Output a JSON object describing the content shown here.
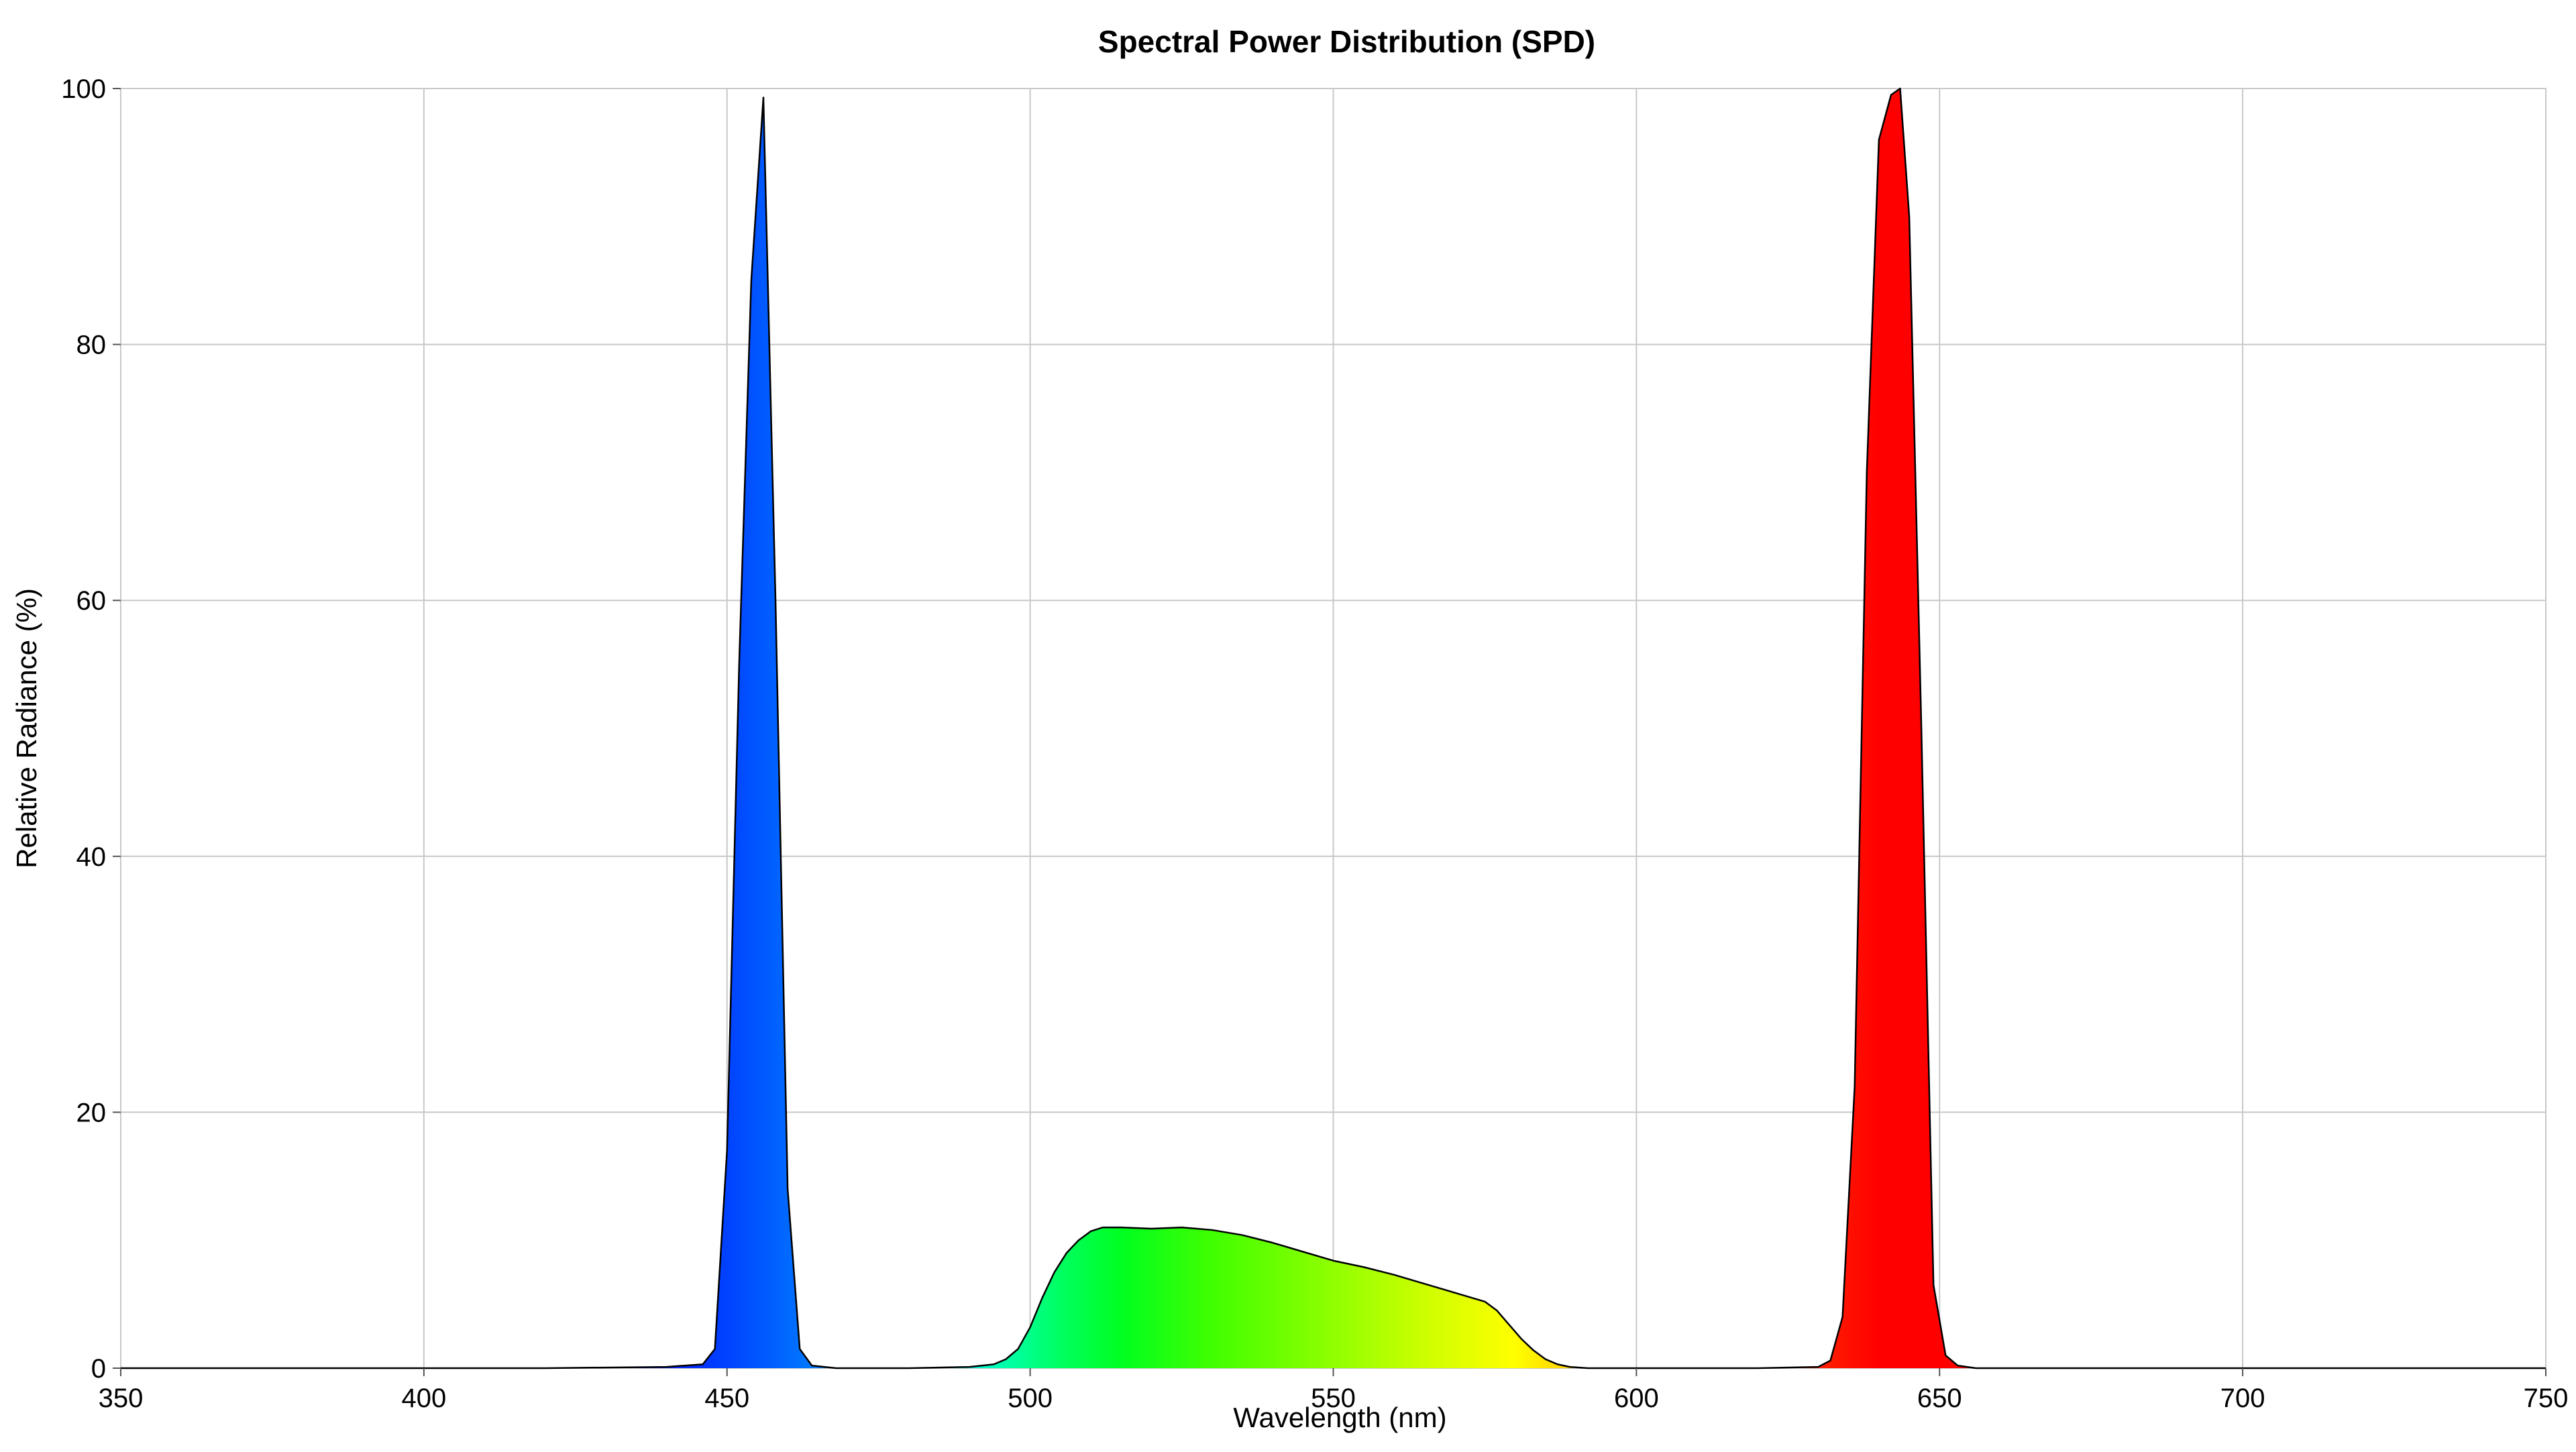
{
  "chart_data": {
    "type": "area",
    "title": "Spectral Power Distribution (SPD)",
    "xlabel": "Wavelength (nm)",
    "ylabel": "Relative Radiance (%)",
    "xlim": [
      350,
      750
    ],
    "ylim": [
      0,
      100
    ],
    "x_ticks": [
      350,
      400,
      450,
      500,
      550,
      600,
      650,
      700,
      750
    ],
    "y_ticks": [
      0,
      20,
      40,
      60,
      80,
      100
    ],
    "grid": true,
    "legend": "none",
    "fill": "wavelength-color-gradient",
    "line_color": "#000000",
    "series": [
      {
        "x": [
          350,
          380,
          400,
          420,
          440,
          446,
          448,
          450,
          452,
          454,
          456,
          458,
          460,
          462,
          464,
          468,
          480,
          490,
          494,
          496,
          498,
          500,
          502,
          504,
          506,
          508,
          510,
          512,
          515,
          520,
          525,
          530,
          535,
          540,
          545,
          550,
          555,
          560,
          565,
          570,
          575,
          577,
          579,
          581,
          583,
          585,
          587,
          589,
          592,
          600,
          620,
          630,
          632,
          634,
          636,
          638,
          640,
          642,
          643.5,
          645,
          647,
          649,
          651,
          653,
          656,
          660,
          680,
          750
        ],
        "y": [
          0,
          0,
          0,
          0,
          0.1,
          0.3,
          1.5,
          17,
          55,
          85,
          99.3,
          60,
          14,
          1.5,
          0.2,
          0,
          0,
          0.1,
          0.3,
          0.7,
          1.5,
          3.2,
          5.5,
          7.5,
          9.0,
          10.0,
          10.7,
          11.0,
          11.0,
          10.9,
          11.0,
          10.8,
          10.4,
          9.8,
          9.1,
          8.4,
          7.9,
          7.3,
          6.6,
          5.9,
          5.2,
          4.5,
          3.4,
          2.3,
          1.4,
          0.7,
          0.3,
          0.1,
          0,
          0,
          0,
          0.1,
          0.6,
          4,
          22,
          70,
          96,
          99.5,
          100,
          90,
          50,
          6.5,
          1.0,
          0.2,
          0,
          0,
          0,
          0
        ]
      }
    ]
  }
}
